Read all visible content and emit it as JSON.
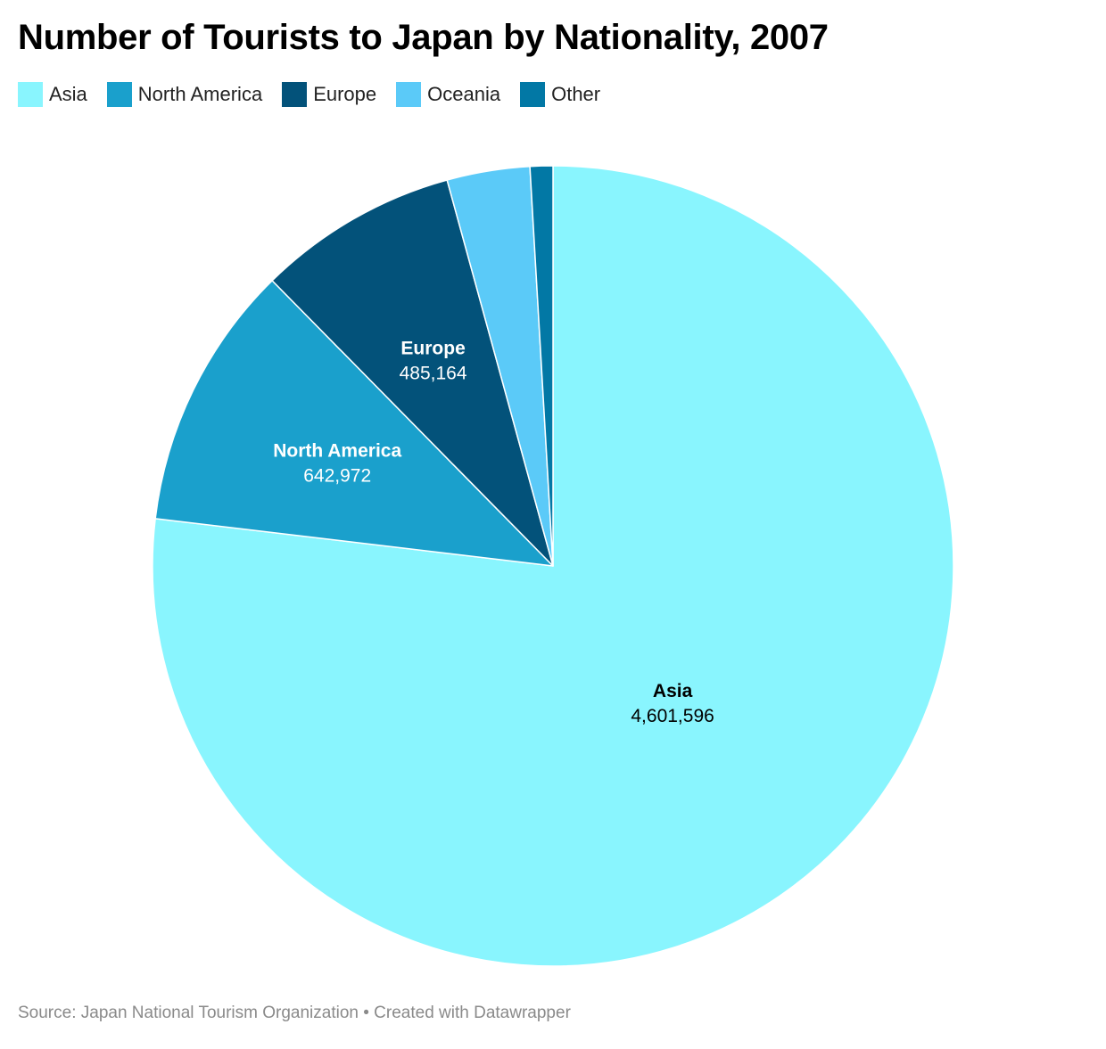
{
  "header": {
    "title": "Number of Tourists to Japan by Nationality, 2007"
  },
  "footer": {
    "text": "Source: Japan National Tourism Organization • Created with Datawrapper"
  },
  "chart_data": {
    "type": "pie",
    "title": "Number of Tourists to Japan by Nationality, 2007",
    "legend_position": "top-left",
    "slices": [
      {
        "label": "Asia",
        "value": 4601596,
        "value_label": "4,601,596",
        "color": "#89f5fe",
        "text_color": "#000000",
        "show_label": true
      },
      {
        "label": "North America",
        "value": 642972,
        "value_label": "642,972",
        "color": "#1aa0cc",
        "text_color": "#ffffff",
        "show_label": true
      },
      {
        "label": "Europe",
        "value": 485164,
        "value_label": "485,164",
        "color": "#03527a",
        "text_color": "#ffffff",
        "show_label": true
      },
      {
        "label": "Oceania",
        "value": 200000,
        "value_label": "",
        "color": "#5bcaf8",
        "text_color": "#000000",
        "show_label": false
      },
      {
        "label": "Other",
        "value": 55000,
        "value_label": "",
        "color": "#0278a5",
        "text_color": "#ffffff",
        "show_label": false
      }
    ],
    "source": "Japan National Tourism Organization"
  }
}
